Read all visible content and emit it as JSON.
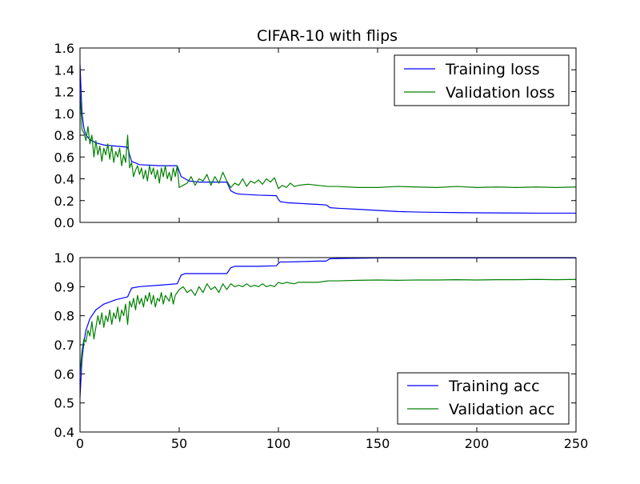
{
  "chart_data": [
    {
      "type": "line",
      "title": "CIFAR-10 with flips",
      "xlabel": "",
      "ylabel": "",
      "xlim": [
        0,
        250
      ],
      "ylim": [
        0.0,
        1.6
      ],
      "xticks": [
        0,
        50,
        100,
        150,
        200,
        250
      ],
      "yticks": [
        0.0,
        0.2,
        0.4,
        0.6,
        0.8,
        1.0,
        1.2,
        1.4,
        1.6
      ],
      "ytick_labels": [
        "0.0",
        "0.2",
        "0.4",
        "0.6",
        "0.8",
        "1.0",
        "1.2",
        "1.4",
        "1.6"
      ],
      "show_xtick_labels": false,
      "legend_position": "top-right",
      "series": [
        {
          "name": "Training loss",
          "color": "#0000ff",
          "x": [
            0,
            1,
            2,
            3,
            5,
            8,
            12,
            18,
            24,
            25,
            26,
            30,
            40,
            49,
            50,
            51,
            53,
            55,
            60,
            70,
            74,
            75,
            76,
            78,
            80,
            90,
            99,
            100,
            101,
            103,
            105,
            110,
            115,
            120,
            124,
            125,
            126,
            130,
            140,
            150,
            160,
            170,
            180,
            190,
            200,
            210,
            220,
            230,
            240,
            250
          ],
          "y": [
            1.45,
            1.0,
            0.86,
            0.8,
            0.76,
            0.73,
            0.71,
            0.7,
            0.69,
            0.62,
            0.56,
            0.53,
            0.52,
            0.52,
            0.47,
            0.42,
            0.4,
            0.38,
            0.37,
            0.37,
            0.37,
            0.33,
            0.29,
            0.27,
            0.26,
            0.25,
            0.245,
            0.21,
            0.19,
            0.185,
            0.18,
            0.175,
            0.17,
            0.165,
            0.16,
            0.15,
            0.135,
            0.13,
            0.12,
            0.11,
            0.1,
            0.095,
            0.092,
            0.09,
            0.088,
            0.087,
            0.086,
            0.085,
            0.085,
            0.085
          ]
        },
        {
          "name": "Validation loss",
          "color": "#008000",
          "x": [
            0,
            1,
            2,
            3,
            4,
            5,
            6,
            7,
            8,
            9,
            10,
            11,
            12,
            13,
            14,
            15,
            16,
            17,
            18,
            19,
            20,
            21,
            22,
            23,
            24,
            25,
            26,
            27,
            28,
            29,
            30,
            31,
            32,
            33,
            34,
            35,
            36,
            37,
            38,
            39,
            40,
            41,
            42,
            43,
            44,
            45,
            46,
            47,
            48,
            49,
            50,
            52,
            54,
            56,
            58,
            60,
            62,
            64,
            66,
            68,
            70,
            72,
            74,
            76,
            78,
            80,
            82,
            84,
            86,
            88,
            90,
            92,
            94,
            96,
            98,
            100,
            102,
            104,
            106,
            108,
            110,
            115,
            120,
            125,
            130,
            140,
            150,
            160,
            170,
            180,
            190,
            200,
            210,
            220,
            230,
            240,
            250
          ],
          "y": [
            1.2,
            0.85,
            0.82,
            0.75,
            0.88,
            0.72,
            0.8,
            0.6,
            0.75,
            0.62,
            0.7,
            0.56,
            0.68,
            0.62,
            0.72,
            0.58,
            0.7,
            0.55,
            0.65,
            0.6,
            0.68,
            0.52,
            0.62,
            0.55,
            0.8,
            0.5,
            0.55,
            0.42,
            0.48,
            0.52,
            0.44,
            0.5,
            0.4,
            0.48,
            0.38,
            0.52,
            0.44,
            0.5,
            0.4,
            0.48,
            0.36,
            0.5,
            0.42,
            0.52,
            0.4,
            0.46,
            0.38,
            0.5,
            0.42,
            0.52,
            0.32,
            0.34,
            0.36,
            0.42,
            0.34,
            0.4,
            0.38,
            0.44,
            0.34,
            0.42,
            0.36,
            0.46,
            0.38,
            0.32,
            0.36,
            0.34,
            0.4,
            0.33,
            0.38,
            0.36,
            0.39,
            0.35,
            0.4,
            0.37,
            0.41,
            0.31,
            0.34,
            0.32,
            0.36,
            0.33,
            0.34,
            0.35,
            0.34,
            0.33,
            0.33,
            0.32,
            0.32,
            0.33,
            0.325,
            0.32,
            0.33,
            0.32,
            0.325,
            0.32,
            0.325,
            0.32,
            0.325
          ]
        }
      ]
    },
    {
      "type": "line",
      "title": "",
      "xlabel": "",
      "ylabel": "",
      "xlim": [
        0,
        250
      ],
      "ylim": [
        0.4,
        1.0
      ],
      "xticks": [
        0,
        50,
        100,
        150,
        200,
        250
      ],
      "xtick_labels": [
        "0",
        "50",
        "100",
        "150",
        "200",
        "250"
      ],
      "yticks": [
        0.4,
        0.5,
        0.6,
        0.7,
        0.8,
        0.9,
        1.0
      ],
      "ytick_labels": [
        "0.4",
        "0.5",
        "0.6",
        "0.7",
        "0.8",
        "0.9",
        "1.0"
      ],
      "show_xtick_labels": true,
      "legend_position": "bottom-right",
      "series": [
        {
          "name": "Training acc",
          "color": "#0000ff",
          "x": [
            0,
            1,
            2,
            3,
            5,
            8,
            12,
            18,
            24,
            25,
            26,
            30,
            40,
            49,
            50,
            51,
            53,
            55,
            60,
            70,
            74,
            75,
            76,
            78,
            80,
            90,
            99,
            100,
            101,
            103,
            105,
            110,
            115,
            120,
            124,
            125,
            126,
            130,
            140,
            150,
            160,
            170,
            180,
            190,
            200,
            210,
            220,
            230,
            240,
            250
          ],
          "y": [
            0.52,
            0.65,
            0.71,
            0.75,
            0.79,
            0.82,
            0.84,
            0.855,
            0.865,
            0.88,
            0.895,
            0.9,
            0.905,
            0.91,
            0.925,
            0.94,
            0.945,
            0.945,
            0.945,
            0.945,
            0.945,
            0.955,
            0.965,
            0.97,
            0.97,
            0.97,
            0.972,
            0.98,
            0.985,
            0.985,
            0.985,
            0.986,
            0.987,
            0.988,
            0.988,
            0.992,
            0.996,
            0.997,
            0.998,
            0.999,
            0.999,
            0.999,
            0.999,
            0.999,
            0.999,
            0.999,
            0.999,
            0.999,
            0.999,
            0.999
          ]
        },
        {
          "name": "Validation acc",
          "color": "#008000",
          "x": [
            0,
            1,
            2,
            3,
            4,
            5,
            6,
            7,
            8,
            9,
            10,
            11,
            12,
            13,
            14,
            15,
            16,
            17,
            18,
            19,
            20,
            21,
            22,
            23,
            24,
            25,
            26,
            27,
            28,
            29,
            30,
            31,
            32,
            33,
            34,
            35,
            36,
            37,
            38,
            39,
            40,
            41,
            42,
            43,
            44,
            45,
            46,
            47,
            48,
            49,
            50,
            52,
            54,
            56,
            58,
            60,
            62,
            64,
            66,
            68,
            70,
            72,
            74,
            76,
            78,
            80,
            82,
            84,
            86,
            88,
            90,
            92,
            94,
            96,
            98,
            100,
            102,
            104,
            106,
            108,
            110,
            115,
            120,
            125,
            130,
            140,
            150,
            160,
            170,
            180,
            190,
            200,
            210,
            220,
            230,
            240,
            250
          ],
          "y": [
            0.6,
            0.68,
            0.72,
            0.71,
            0.75,
            0.73,
            0.78,
            0.72,
            0.76,
            0.8,
            0.77,
            0.81,
            0.76,
            0.8,
            0.78,
            0.82,
            0.77,
            0.81,
            0.79,
            0.83,
            0.78,
            0.82,
            0.8,
            0.84,
            0.77,
            0.85,
            0.83,
            0.86,
            0.82,
            0.87,
            0.84,
            0.86,
            0.83,
            0.87,
            0.85,
            0.88,
            0.84,
            0.87,
            0.83,
            0.86,
            0.85,
            0.88,
            0.84,
            0.87,
            0.86,
            0.85,
            0.88,
            0.84,
            0.87,
            0.88,
            0.89,
            0.9,
            0.88,
            0.89,
            0.87,
            0.9,
            0.88,
            0.91,
            0.89,
            0.9,
            0.88,
            0.91,
            0.89,
            0.91,
            0.9,
            0.905,
            0.9,
            0.91,
            0.9,
            0.905,
            0.9,
            0.91,
            0.9,
            0.905,
            0.9,
            0.915,
            0.91,
            0.915,
            0.912,
            0.91,
            0.915,
            0.915,
            0.915,
            0.92,
            0.92,
            0.922,
            0.923,
            0.922,
            0.923,
            0.923,
            0.924,
            0.923,
            0.924,
            0.924,
            0.925,
            0.924,
            0.925
          ]
        }
      ]
    }
  ]
}
